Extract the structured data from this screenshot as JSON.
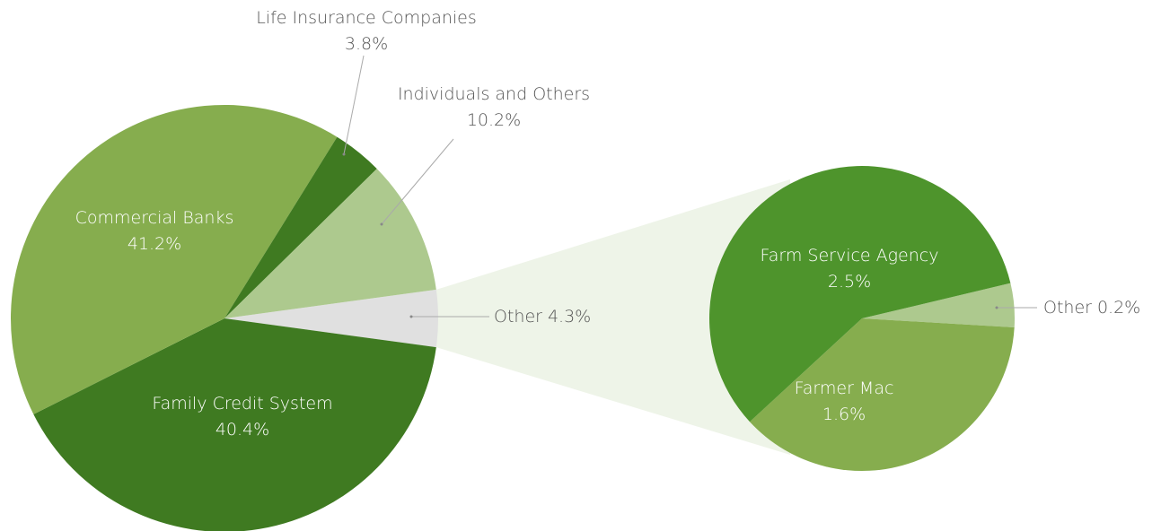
{
  "chart_data": [
    {
      "type": "pie",
      "categories": [
        "Other",
        "Family Credit System",
        "Commercial Banks",
        "Life Insurance Companies",
        "Individuals and Others"
      ],
      "values": [
        4.3,
        40.4,
        41.2,
        3.8,
        10.2
      ],
      "value_labels": [
        "4.3%",
        "40.4%",
        "41.2%",
        "3.8%",
        "10.2%"
      ],
      "colors": [
        "#e0e0e0",
        "#3f7a21",
        "#86ad4e",
        "#3f7a21",
        "#adc98e"
      ]
    },
    {
      "type": "pie",
      "categories": [
        "Other",
        "Farmer Mac",
        "Farm Service Agency"
      ],
      "values": [
        0.2,
        1.6,
        2.5
      ],
      "value_labels": [
        "0.2%",
        "1.6%",
        "2.5%"
      ],
      "colors": [
        "#adc98e",
        "#86ad4e",
        "#4e942c"
      ]
    }
  ]
}
